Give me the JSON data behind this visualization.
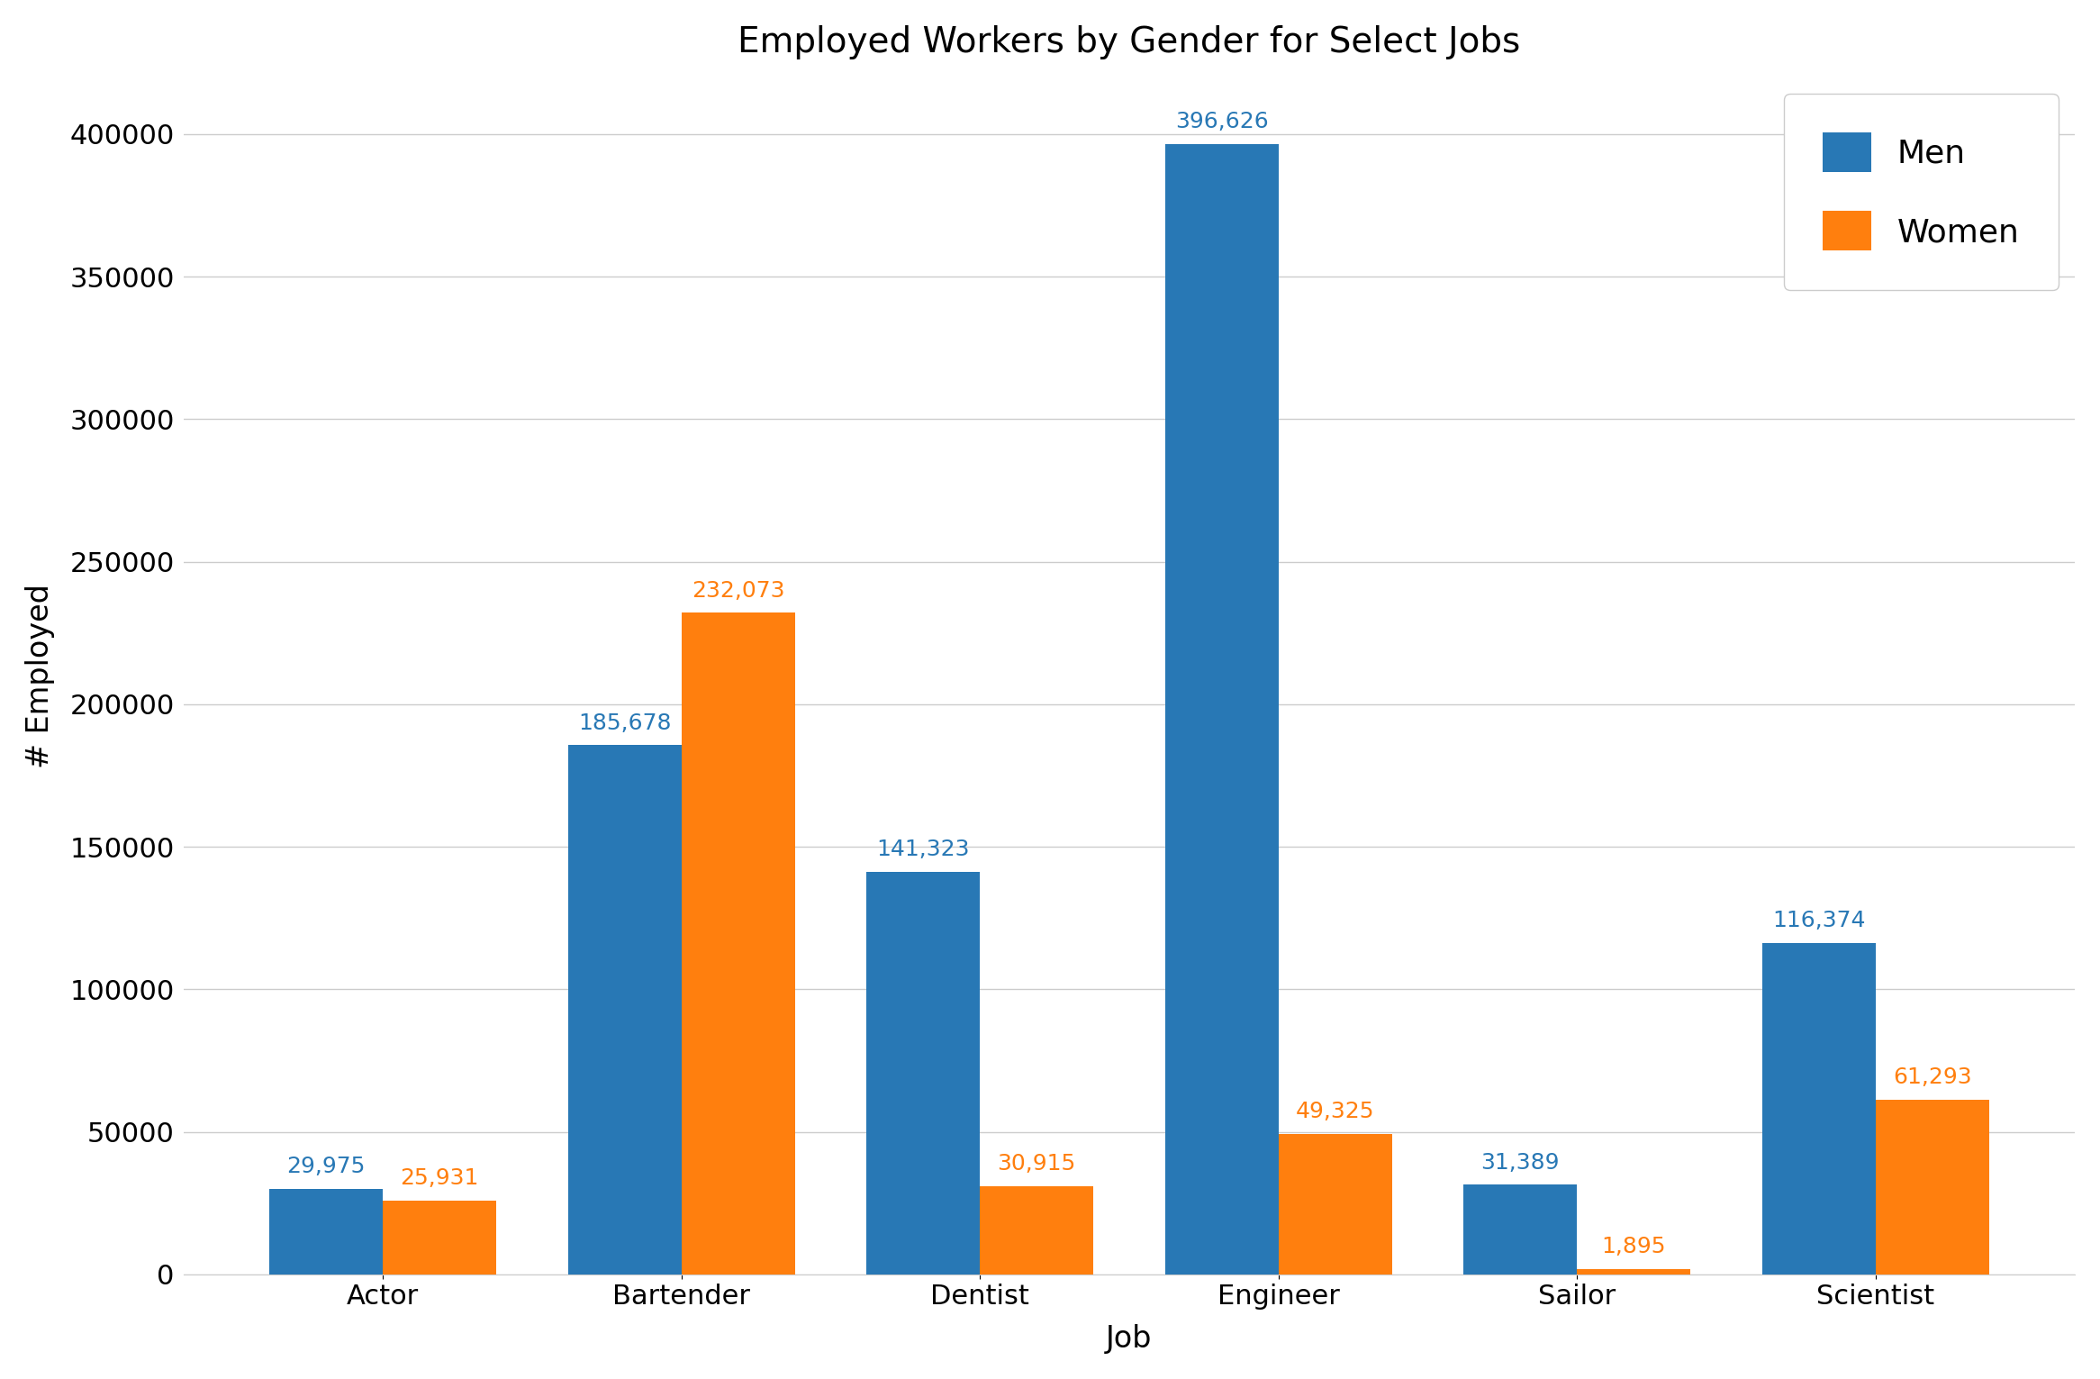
{
  "title": "Employed Workers by Gender for Select Jobs",
  "xlabel": "Job",
  "ylabel": "# Employed",
  "categories": [
    "Actor",
    "Bartender",
    "Dentist",
    "Engineer",
    "Sailor",
    "Scientist"
  ],
  "men_values": [
    29975,
    185678,
    141323,
    396626,
    31389,
    116374
  ],
  "women_values": [
    25931,
    232073,
    30915,
    49325,
    1895,
    61293
  ],
  "men_color": "#2878b5",
  "women_color": "#ff7f0e",
  "men_label": "Men",
  "women_label": "Women",
  "ylim": [
    0,
    420000
  ],
  "title_fontsize": 28,
  "label_fontsize": 24,
  "tick_fontsize": 22,
  "legend_fontsize": 26,
  "bar_label_fontsize": 18,
  "bar_width": 0.38,
  "background_color": "#ffffff",
  "grid_color": "#cccccc"
}
